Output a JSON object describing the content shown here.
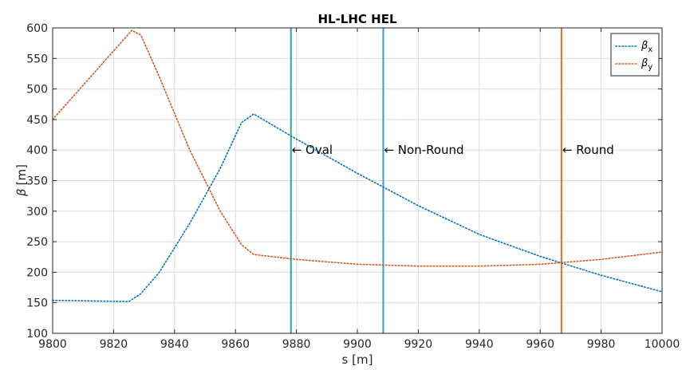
{
  "chart_data": {
    "type": "line",
    "title": "HL-LHC HEL",
    "xlabel": "s [m]",
    "ylabel_symbol": "β",
    "ylabel_unit": "[m]",
    "xlim": [
      9800,
      10000
    ],
    "ylim": [
      100,
      600
    ],
    "xticks": [
      "9800",
      "9820",
      "9840",
      "9860",
      "9880",
      "9900",
      "9920",
      "9940",
      "9960",
      "9980",
      "10000"
    ],
    "yticks": [
      "100",
      "150",
      "200",
      "250",
      "300",
      "350",
      "400",
      "450",
      "500",
      "550",
      "600"
    ],
    "grid": true,
    "legend_position": "top-right",
    "series": [
      {
        "name": "βx",
        "symbol": "β",
        "subscript": "x",
        "color": "#0072BD",
        "style": "dotted",
        "points": [
          [
            9800,
            154
          ],
          [
            9825,
            152
          ],
          [
            9829,
            165
          ],
          [
            9835,
            200
          ],
          [
            9845,
            280
          ],
          [
            9855,
            370
          ],
          [
            9862,
            445
          ],
          [
            9866,
            459
          ],
          [
            9880,
            418
          ],
          [
            9900,
            362
          ],
          [
            9920,
            309
          ],
          [
            9940,
            262
          ],
          [
            9960,
            226
          ],
          [
            9980,
            195
          ],
          [
            10000,
            168
          ]
        ]
      },
      {
        "name": "βy",
        "symbol": "β",
        "subscript": "y",
        "color": "#D95319",
        "style": "dotted",
        "points": [
          [
            9800,
            450
          ],
          [
            9826,
            596
          ],
          [
            9829,
            588
          ],
          [
            9835,
            520
          ],
          [
            9845,
            400
          ],
          [
            9855,
            300
          ],
          [
            9862,
            245
          ],
          [
            9866,
            229
          ],
          [
            9880,
            221
          ],
          [
            9900,
            213
          ],
          [
            9920,
            210
          ],
          [
            9940,
            210
          ],
          [
            9960,
            213
          ],
          [
            9980,
            221
          ],
          [
            10000,
            233
          ]
        ]
      }
    ],
    "markers": [
      {
        "x": 9878.2,
        "label": "← Oval",
        "color": "#2CA7A4"
      },
      {
        "x": 9908.5,
        "label": "← Non-Round",
        "color": "#3399E6"
      },
      {
        "x": 9967,
        "label": "← Round",
        "color": "#E2711D"
      }
    ],
    "marker_label_y": 400
  }
}
